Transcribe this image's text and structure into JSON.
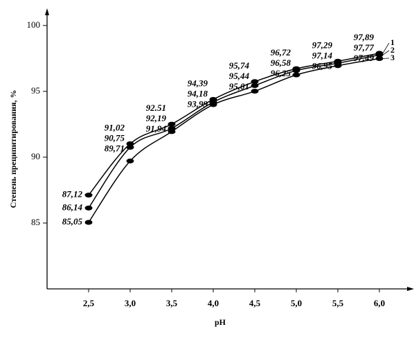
{
  "chart_data": {
    "type": "line",
    "x_label": "pH",
    "y_label": "Степень преципитирования, %",
    "x": [
      2.5,
      3.0,
      3.5,
      4.0,
      4.5,
      5.0,
      5.5,
      6.0
    ],
    "series": [
      {
        "name": "1",
        "color": "#000000",
        "values": [
          87.12,
          91.02,
          92.51,
          94.39,
          95.74,
          96.72,
          97.29,
          97.89
        ],
        "value_labels": [
          "87,12",
          "91,02",
          "92.51",
          "94,39",
          "95,74",
          "96,72",
          "97,29",
          "97,89"
        ]
      },
      {
        "name": "2",
        "color": "#000000",
        "values": [
          86.14,
          90.75,
          92.19,
          94.18,
          95.44,
          96.58,
          97.14,
          97.77
        ],
        "value_labels": [
          "86,14",
          "90,75",
          "92,19",
          "94,18",
          "95,44",
          "96,58",
          "97,14",
          "97,77"
        ]
      },
      {
        "name": "3",
        "color": "#000000",
        "values": [
          85.05,
          89.71,
          91.94,
          93.99,
          95.01,
          96.25,
          96.95,
          97.49
        ],
        "value_labels": [
          "85,05",
          "89,71",
          "91,94",
          "93,99",
          "95,01",
          "96,25",
          "96,95",
          "97,49"
        ]
      }
    ],
    "xlim": [
      2.0,
      6.4
    ],
    "ylim": [
      80,
      101.2
    ],
    "xticks": [
      {
        "value": 2.5,
        "label": "2,5"
      },
      {
        "value": 3.0,
        "label": "3,0"
      },
      {
        "value": 3.5,
        "label": "3,5"
      },
      {
        "value": 4.0,
        "label": "4,0"
      },
      {
        "value": 4.5,
        "label": "4,5"
      },
      {
        "value": 5.0,
        "label": "5,0"
      },
      {
        "value": 5.5,
        "label": "5,5"
      },
      {
        "value": 6.0,
        "label": "6,0"
      }
    ],
    "yticks": [
      85,
      90,
      95,
      100
    ],
    "grid": false
  }
}
